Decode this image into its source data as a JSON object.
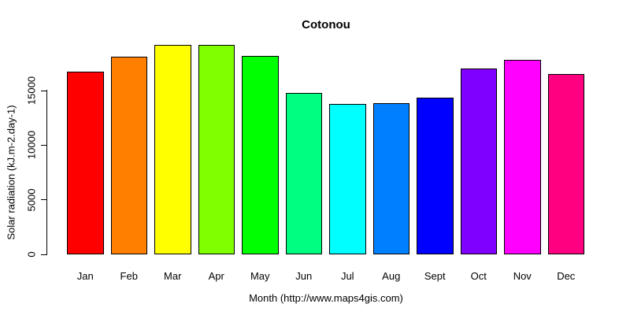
{
  "chart_data": {
    "type": "bar",
    "title": "Cotonou",
    "xlabel": "Month (http://www.maps4gis.com)",
    "ylabel": "Solar radiation (kJ.m-2.day-1)",
    "categories": [
      "Jan",
      "Feb",
      "Mar",
      "Apr",
      "May",
      "Jun",
      "Jul",
      "Aug",
      "Sept",
      "Oct",
      "Nov",
      "Dec"
    ],
    "values": [
      16700,
      18100,
      19200,
      19150,
      18200,
      14800,
      13750,
      13850,
      14350,
      17050,
      17800,
      16500
    ],
    "bar_colors": [
      "#FF0000",
      "#FF8000",
      "#FFFF00",
      "#80FF00",
      "#00FF00",
      "#00FF80",
      "#00FFFF",
      "#0080FF",
      "#0000FF",
      "#8000FF",
      "#FF00FF",
      "#FF0080"
    ],
    "bar_border_color": "#000000",
    "axis_color": "#000000",
    "background": "#FFFFFF",
    "ylim": [
      0,
      15000
    ],
    "yticks": [
      0,
      5000,
      10000,
      15000
    ],
    "ytick_labels": [
      "0",
      "5000",
      "10000",
      "15000"
    ],
    "grid": false,
    "legend": "none"
  }
}
